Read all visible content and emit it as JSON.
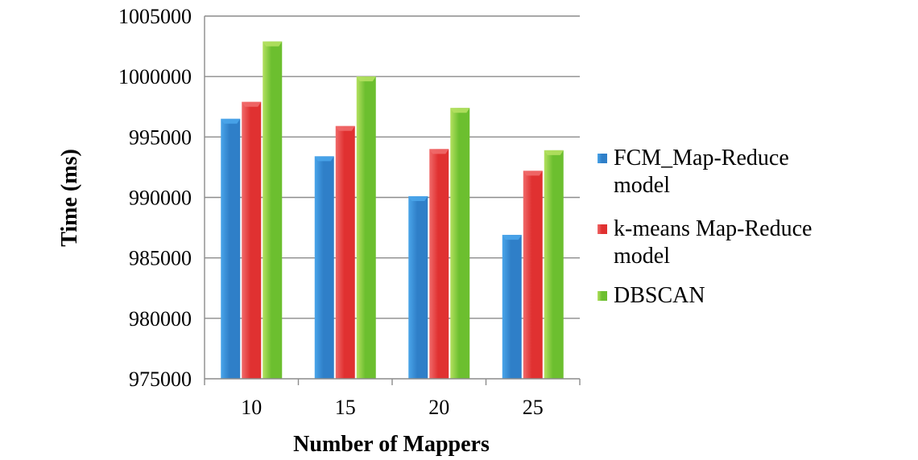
{
  "chart_data": {
    "type": "bar",
    "xlabel": "Number of Mappers",
    "ylabel": "Time (ms)",
    "categories": [
      "10",
      "15",
      "20",
      "25"
    ],
    "ylim": [
      975000,
      1005000
    ],
    "yticks": [
      975000,
      980000,
      985000,
      990000,
      995000,
      1000000,
      1005000
    ],
    "grid": true,
    "legend_position": "right",
    "series": [
      {
        "name_lines": [
          "FCM_Map-Reduce",
          "model"
        ],
        "color": "#2f7fc8",
        "top_color": "#4aa5ea",
        "values": [
          996500,
          993400,
          990100,
          986900
        ]
      },
      {
        "name_lines": [
          "k-means Map-Reduce",
          "model"
        ],
        "color": "#e03131",
        "top_color": "#f06a6a",
        "values": [
          997900,
          995900,
          994000,
          992200
        ]
      },
      {
        "name_lines": [
          "DBSCAN"
        ],
        "color": "#6cbf2f",
        "top_color": "#b4e060",
        "values": [
          1002900,
          1000000,
          997400,
          993900
        ]
      }
    ]
  }
}
